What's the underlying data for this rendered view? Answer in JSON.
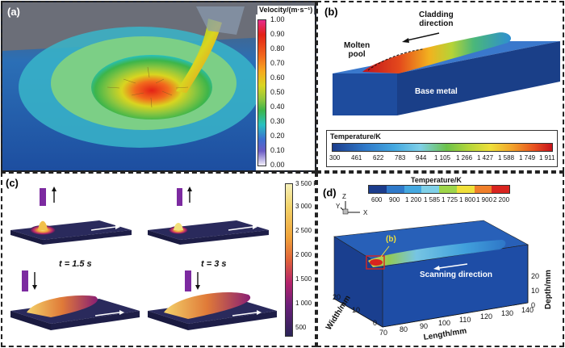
{
  "figure": {
    "panels": [
      {
        "id": "a",
        "label": "(a)"
      },
      {
        "id": "b",
        "label": "(b)"
      },
      {
        "id": "c",
        "label": "(c)"
      },
      {
        "id": "d",
        "label": "(d)"
      }
    ]
  },
  "panel_a": {
    "colorbar_title": "Velocity/(m·s⁻¹)",
    "ticks": [
      "1.00",
      "0.90",
      "0.80",
      "0.70",
      "0.60",
      "0.50",
      "0.40",
      "0.30",
      "0.20",
      "0.10",
      "0.00"
    ],
    "colors": [
      "#e62b8c",
      "#e32216",
      "#f26a1d",
      "#f7a81e",
      "#d9d520",
      "#8cc63f",
      "#3db54a",
      "#27c0c0",
      "#3b6fd1",
      "#6b5bc5",
      "#f4f1fb"
    ]
  },
  "panel_b": {
    "annotation_direction": "Cladding\ndirection",
    "annotation_pool": "Molten\npool",
    "annotation_base": "Base metal",
    "colorbar_title": "Temperature/K",
    "ticks": [
      "300",
      "461",
      "622",
      "783",
      "944",
      "1 105",
      "1 266",
      "1 427",
      "1 588",
      "1 749",
      "1 911"
    ]
  },
  "panel_c": {
    "time_1": "t = 1.5 s",
    "time_2": "t = 3 s",
    "colorbar_unit_tick": "3 500 K",
    "ticks": [
      "3 000",
      "2 500",
      "2 000",
      "1 500",
      "1 000",
      "500"
    ]
  },
  "panel_d": {
    "colorbar_title": "Temperature/K",
    "ticks": [
      "600",
      "900",
      "1 200",
      "1 585",
      "1 725",
      "1 800",
      "1 900",
      "2 200"
    ],
    "colors": [
      "#1b3c8c",
      "#2f79c9",
      "#44a8e0",
      "#7fd0e8",
      "#9ed64a",
      "#f0e03a",
      "#f07f2a",
      "#d8241f"
    ],
    "inset_label": "(b)",
    "direction_label": "Scanning direction",
    "axis_x_label": "Length/mm",
    "axis_y_label": "Width/mm",
    "axis_z_label": "Depth/mm",
    "x_ticks": [
      "70",
      "80",
      "90",
      "100",
      "110",
      "120",
      "130",
      "140"
    ],
    "y_ticks": [
      "0",
      "10",
      "20"
    ],
    "z_ticks": [
      "0",
      "10",
      "20"
    ],
    "triad_z": "Z",
    "triad_y": "Y",
    "triad_x": "X"
  }
}
